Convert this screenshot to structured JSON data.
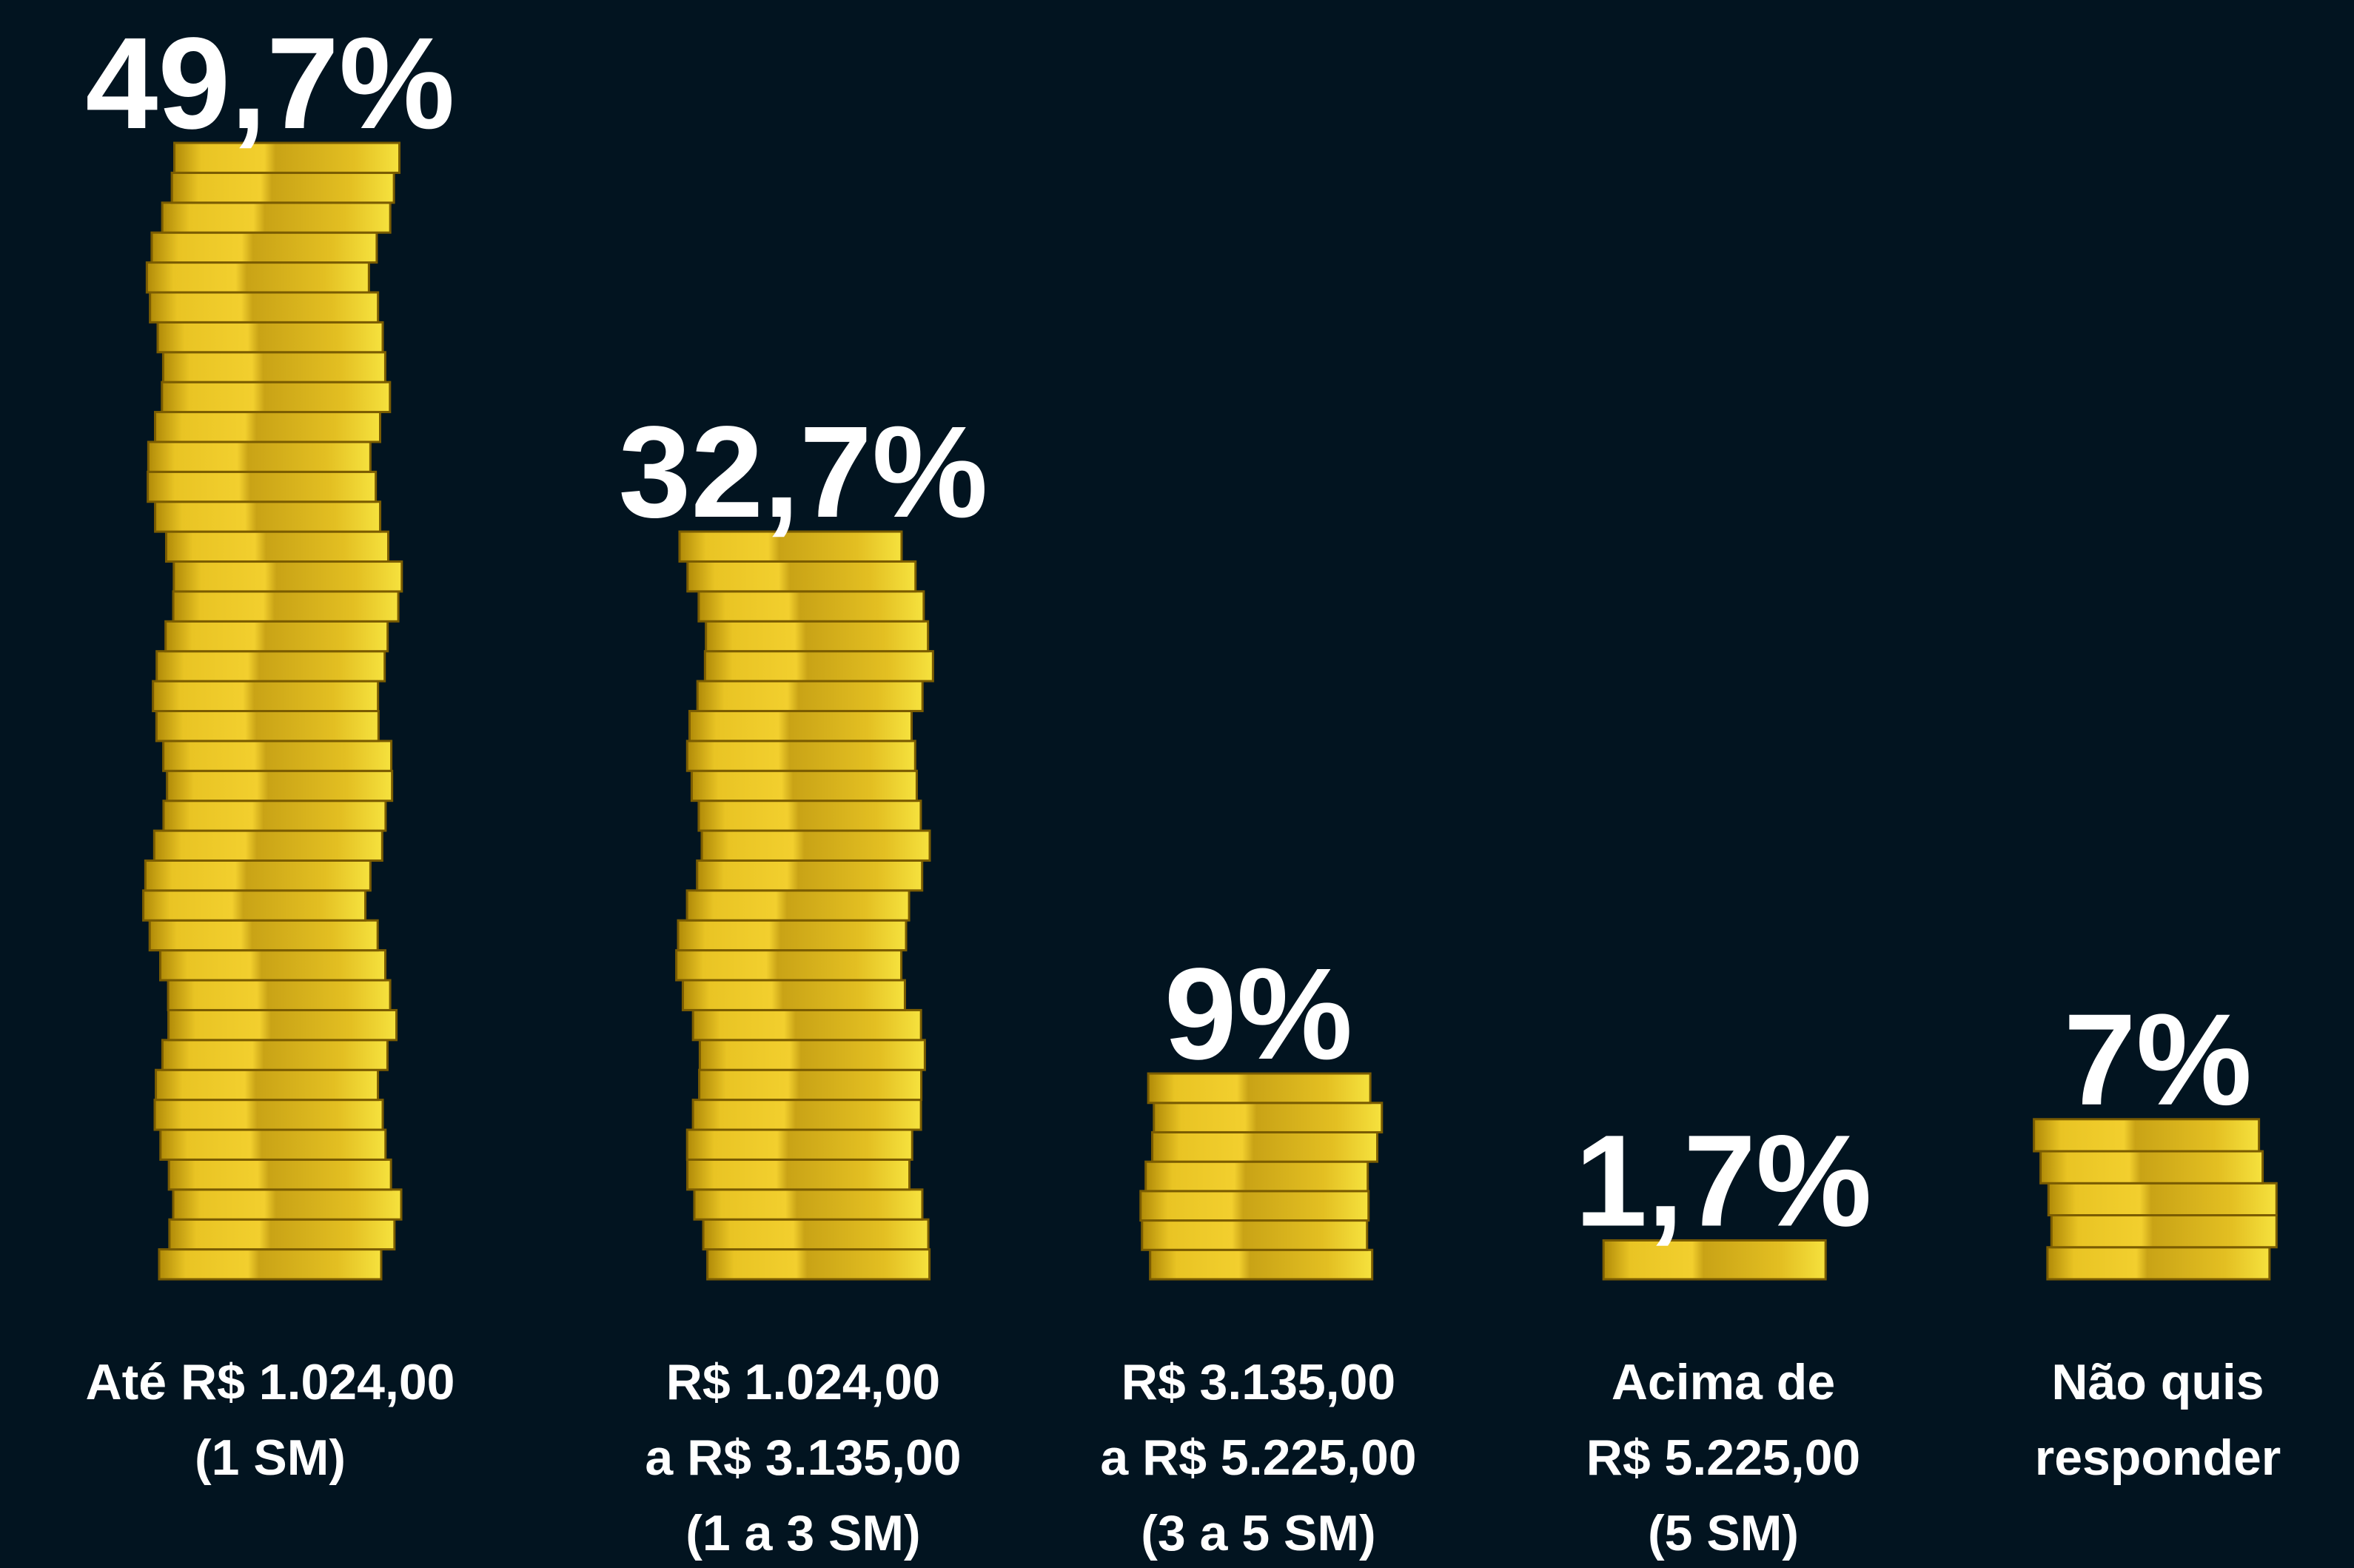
{
  "chart_data": {
    "type": "bar",
    "categories": [
      [
        "Até R$ 1.024,00",
        "(1 SM)"
      ],
      [
        "R$ 1.024,00",
        "a R$ 3.135,00",
        "(1 a 3 SM)"
      ],
      [
        "R$ 3.135,00",
        "a R$ 5.225,00",
        "(3 a 5 SM)"
      ],
      [
        "Acima de",
        "R$ 5.225,00",
        "(5 SM)"
      ],
      [
        "Não quis",
        "responder"
      ]
    ],
    "values": [
      49.7,
      32.7,
      9,
      1.7,
      7
    ],
    "value_labels": [
      "49,7%",
      "32,7%",
      "9%",
      "1,7%",
      "7%"
    ],
    "color": "#e8c020"
  }
}
